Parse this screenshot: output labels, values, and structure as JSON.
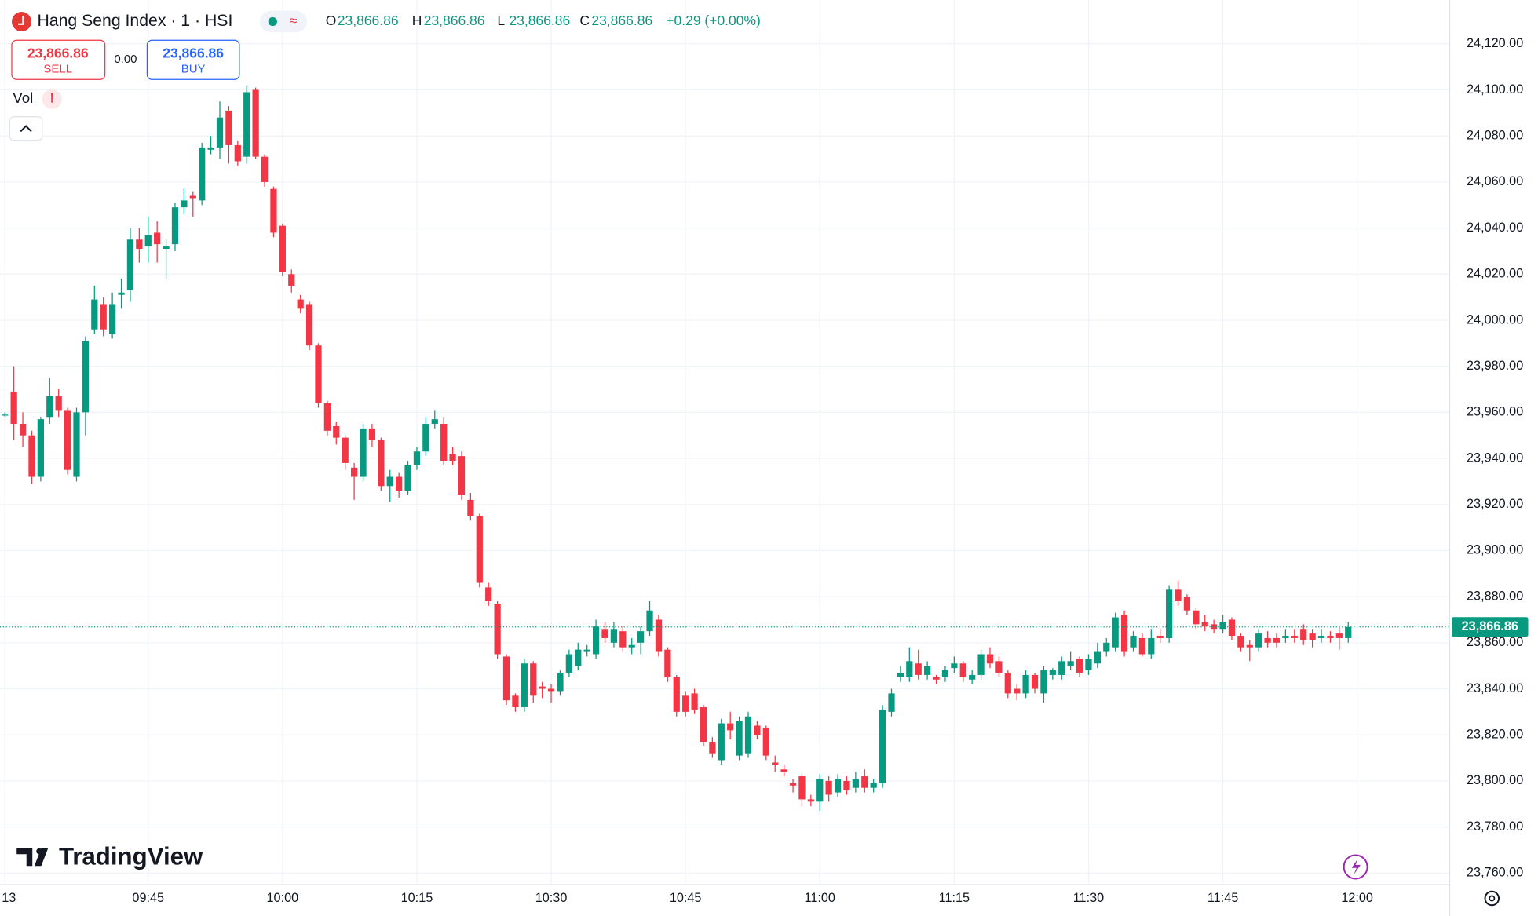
{
  "chart_data": {
    "type": "candlestick",
    "title": "Hang Seng Index · 1 · HSI",
    "header": [
      {
        "label": "O",
        "value": "23,866.86"
      },
      {
        "label": "H",
        "value": "23,866.86"
      },
      {
        "label": "L",
        "value": "23,866.86"
      },
      {
        "label": "C",
        "value": "23,866.86"
      }
    ],
    "change": "+0.29 (+0.00%)",
    "trade": {
      "sell_price": "23,866.86",
      "sell_label": "SELL",
      "spread": "0.00",
      "buy_price": "23,866.86",
      "buy_label": "BUY"
    },
    "indicator": "Vol",
    "brand": "TradingView",
    "up_color": "#089981",
    "down_color": "#f23645",
    "grid": true,
    "last_price": {
      "value": 23866.86,
      "label": "23,866.86"
    },
    "ylim": [
      23755,
      24139
    ],
    "yticks": [
      {
        "value": 23760,
        "label": "23,760.00"
      },
      {
        "value": 23780,
        "label": "23,780.00"
      },
      {
        "value": 23800,
        "label": "23,800.00"
      },
      {
        "value": 23820,
        "label": "23,820.00"
      },
      {
        "value": 23840,
        "label": "23,840.00"
      },
      {
        "value": 23860,
        "label": "23,860.00"
      },
      {
        "value": 23880,
        "label": "23,880.00"
      },
      {
        "value": 23900,
        "label": "23,900.00"
      },
      {
        "value": 23920,
        "label": "23,920.00"
      },
      {
        "value": 23940,
        "label": "23,940.00"
      },
      {
        "value": 23960,
        "label": "23,960.00"
      },
      {
        "value": 23980,
        "label": "23,980.00"
      },
      {
        "value": 24000,
        "label": "24,000.00"
      },
      {
        "value": 24020,
        "label": "24,020.00"
      },
      {
        "value": 24040,
        "label": "24,040.00"
      },
      {
        "value": 24060,
        "label": "24,060.00"
      },
      {
        "value": 24080,
        "label": "24,080.00"
      },
      {
        "value": 24100,
        "label": "24,100.00"
      },
      {
        "value": 24120,
        "label": "24,120.00"
      }
    ],
    "categories": [
      "13",
      null,
      null,
      null,
      null,
      null,
      null,
      null,
      null,
      null,
      null,
      null,
      null,
      null,
      null,
      null,
      "09:45",
      null,
      null,
      null,
      null,
      null,
      null,
      null,
      null,
      null,
      null,
      null,
      null,
      null,
      null,
      "10:00",
      null,
      null,
      null,
      null,
      null,
      null,
      null,
      null,
      null,
      null,
      null,
      null,
      null,
      null,
      "10:15",
      null,
      null,
      null,
      null,
      null,
      null,
      null,
      null,
      null,
      null,
      null,
      null,
      null,
      null,
      "10:30",
      null,
      null,
      null,
      null,
      null,
      null,
      null,
      null,
      null,
      null,
      null,
      null,
      null,
      null,
      "10:45",
      null,
      null,
      null,
      null,
      null,
      null,
      null,
      null,
      null,
      null,
      null,
      null,
      null,
      null,
      "11:00",
      null,
      null,
      null,
      null,
      null,
      null,
      null,
      null,
      null,
      null,
      null,
      null,
      null,
      null,
      "11:15",
      null,
      null,
      null,
      null,
      null,
      null,
      null,
      null,
      null,
      null,
      null,
      null,
      null,
      null,
      "11:30",
      null,
      null,
      null,
      null,
      null,
      null,
      null,
      null,
      null,
      null,
      null,
      null,
      null,
      null,
      "11:45",
      null,
      null,
      null,
      null,
      null,
      null,
      null,
      null,
      null,
      null,
      null,
      null,
      null,
      null,
      "12:00"
    ],
    "open": [
      23959,
      23969,
      23955,
      23950,
      23932,
      23958,
      23967,
      23961,
      23932,
      23960,
      23996,
      24007,
      23994,
      24011,
      24013,
      24035,
      24032,
      24038,
      24031,
      24033,
      24049,
      24054,
      24052,
      24074,
      24075,
      24091,
      24076,
      24071,
      24100,
      24071,
      24057,
      24041,
      24020,
      24009,
      24007,
      23989,
      23964,
      23954,
      23949,
      23936,
      23932,
      23953,
      23948,
      23928,
      23932,
      23926,
      23937,
      23943,
      23955,
      23955,
      23942,
      23941,
      23922,
      23915,
      23884,
      23877,
      23854,
      23837,
      23832,
      23851,
      23841,
      23840,
      23839,
      23847,
      23850,
      23856,
      23855,
      23866,
      23860,
      23865,
      23858,
      23860,
      23865,
      23870,
      23857,
      23845,
      23837,
      23838,
      23832,
      23817,
      23809,
      23825,
      23811,
      23812,
      23824,
      23823,
      23808,
      23805,
      23799,
      23802,
      23792,
      23791,
      23800,
      23795,
      23800,
      23797,
      23802,
      23797,
      23799,
      23830,
      23845,
      23845,
      23851,
      23846,
      23845,
      23845,
      23849,
      23851,
      23844,
      23846,
      23855,
      23852,
      23847,
      23840,
      23838,
      23846,
      23838,
      23846,
      23846,
      23850,
      23853,
      23848,
      23851,
      23856,
      23858,
      23872,
      23858,
      23862,
      23855,
      23863,
      23862,
      23883,
      23880,
      23874,
      23869,
      23868,
      23866,
      23870,
      23863,
      23859,
      23858,
      23862,
      23862,
      23862,
      23863,
      23866,
      23864,
      23862,
      23863,
      23864,
      23862,
      null
    ],
    "high": [
      23960,
      23980,
      23960,
      23952,
      23958,
      23975,
      23970,
      23962,
      23962,
      23993,
      24015,
      24010,
      24012,
      24018,
      24040,
      24040,
      24045,
      24043,
      24035,
      24051,
      24057,
      24056,
      24077,
      24080,
      24095,
      24093,
      24078,
      24102,
      24101,
      24072,
      24058,
      24042,
      24022,
      24011,
      24008,
      23990,
      23965,
      23956,
      23950,
      23938,
      23955,
      23955,
      23949,
      23935,
      23934,
      23939,
      23945,
      23958,
      23961,
      23958,
      23945,
      23943,
      23925,
      23916,
      23886,
      23878,
      23855,
      23838,
      23853,
      23852,
      23843,
      23842,
      23848,
      23857,
      23860,
      23859,
      23870,
      23869,
      23869,
      23867,
      23862,
      23867,
      23878,
      23872,
      23858,
      23846,
      23839,
      23840,
      23833,
      23819,
      23827,
      23830,
      23828,
      23830,
      23826,
      23824,
      23811,
      23807,
      23801,
      23803,
      23794,
      23803,
      23802,
      23803,
      23802,
      23804,
      23805,
      23801,
      23833,
      23840,
      23850,
      23858,
      23857,
      23852,
      23846,
      23850,
      23854,
      23852,
      23848,
      23857,
      23858,
      23854,
      23848,
      23842,
      23848,
      23847,
      23850,
      23849,
      23854,
      23856,
      23854,
      23855,
      23860,
      23862,
      23873,
      23874,
      23865,
      23864,
      23866,
      23866,
      23885,
      23887,
      23881,
      23875,
      23872,
      23870,
      23872,
      23871,
      23864,
      23861,
      23866,
      23865,
      23864,
      23866,
      23866,
      23868,
      23866,
      23866,
      23865,
      23867,
      23869,
      null
    ],
    "low": [
      23958,
      23948,
      23945,
      23929,
      23930,
      23955,
      23958,
      23933,
      23930,
      23950,
      23994,
      23993,
      23992,
      24005,
      24008,
      24025,
      24025,
      24025,
      24018,
      24030,
      24046,
      24045,
      24050,
      24072,
      24070,
      24068,
      24067,
      24068,
      24070,
      24058,
      24036,
      24019,
      24012,
      24003,
      23987,
      23962,
      23950,
      23946,
      23935,
      23922,
      23930,
      23945,
      23926,
      23921,
      23923,
      23924,
      23935,
      23941,
      23953,
      23937,
      23937,
      23922,
      23913,
      23884,
      23876,
      23853,
      23833,
      23830,
      23830,
      23834,
      23836,
      23834,
      23837,
      23845,
      23848,
      23854,
      23853,
      23860,
      23858,
      23856,
      23855,
      23855,
      23863,
      23854,
      23843,
      23828,
      23828,
      23829,
      23815,
      23810,
      23807,
      23818,
      23809,
      23810,
      23818,
      23809,
      23804,
      23802,
      23795,
      23789,
      23789,
      23787,
      23791,
      23793,
      23794,
      23795,
      23795,
      23795,
      23797,
      23828,
      23843,
      23843,
      23844,
      23844,
      23842,
      23843,
      23847,
      23843,
      23842,
      23844,
      23849,
      23845,
      23836,
      23835,
      23836,
      23838,
      23834,
      23844,
      23844,
      23848,
      23845,
      23846,
      23849,
      23854,
      23856,
      23854,
      23856,
      23854,
      23853,
      23860,
      23860,
      23876,
      23872,
      23866,
      23865,
      23864,
      23864,
      23861,
      23856,
      23852,
      23856,
      23858,
      23858,
      23860,
      23860,
      23859,
      23858,
      23860,
      23860,
      23857,
      23860,
      null
    ],
    "close": [
      23959,
      23955,
      23950,
      23932,
      23957,
      23967,
      23961,
      23935,
      23960,
      23991,
      24009,
      23996,
      24007,
      24012,
      24035,
      24031,
      24037,
      24033,
      24032,
      24049,
      24052,
      24053,
      24075,
      24075,
      24088,
      24076,
      24069,
      24099,
      24071,
      24060,
      24038,
      24021,
      24015,
      24005,
      23989,
      23964,
      23952,
      23949,
      23938,
      23932,
      23953,
      23948,
      23928,
      23932,
      23926,
      23937,
      23943,
      23955,
      23957,
      23939,
      23939,
      23924,
      23915,
      23886,
      23878,
      23855,
      23835,
      23832,
      23851,
      23837,
      23840,
      23839,
      23847,
      23855,
      23857,
      23857,
      23867,
      23862,
      23866,
      23858,
      23859,
      23865,
      23874,
      23856,
      23845,
      23830,
      23830,
      23831,
      23817,
      23812,
      23825,
      23822,
      23826,
      23828,
      23820,
      23811,
      23807,
      23804,
      23798,
      23792,
      23791,
      23801,
      23794,
      23801,
      23796,
      23801,
      23797,
      23799,
      23831,
      23838,
      23847,
      23852,
      23846,
      23850,
      23844,
      23848,
      23851,
      23845,
      23846,
      23855,
      23851,
      23847,
      23838,
      23838,
      23846,
      23840,
      23848,
      23848,
      23852,
      23852,
      23847,
      23853,
      23856,
      23860,
      23871,
      23856,
      23863,
      23855,
      23862,
      23862,
      23883,
      23878,
      23874,
      23868,
      23867,
      23866,
      23869,
      23863,
      23858,
      23858,
      23864,
      23860,
      23860,
      23863,
      23862,
      23861,
      23861,
      23863,
      23862,
      23862,
      23866.86,
      null
    ]
  }
}
